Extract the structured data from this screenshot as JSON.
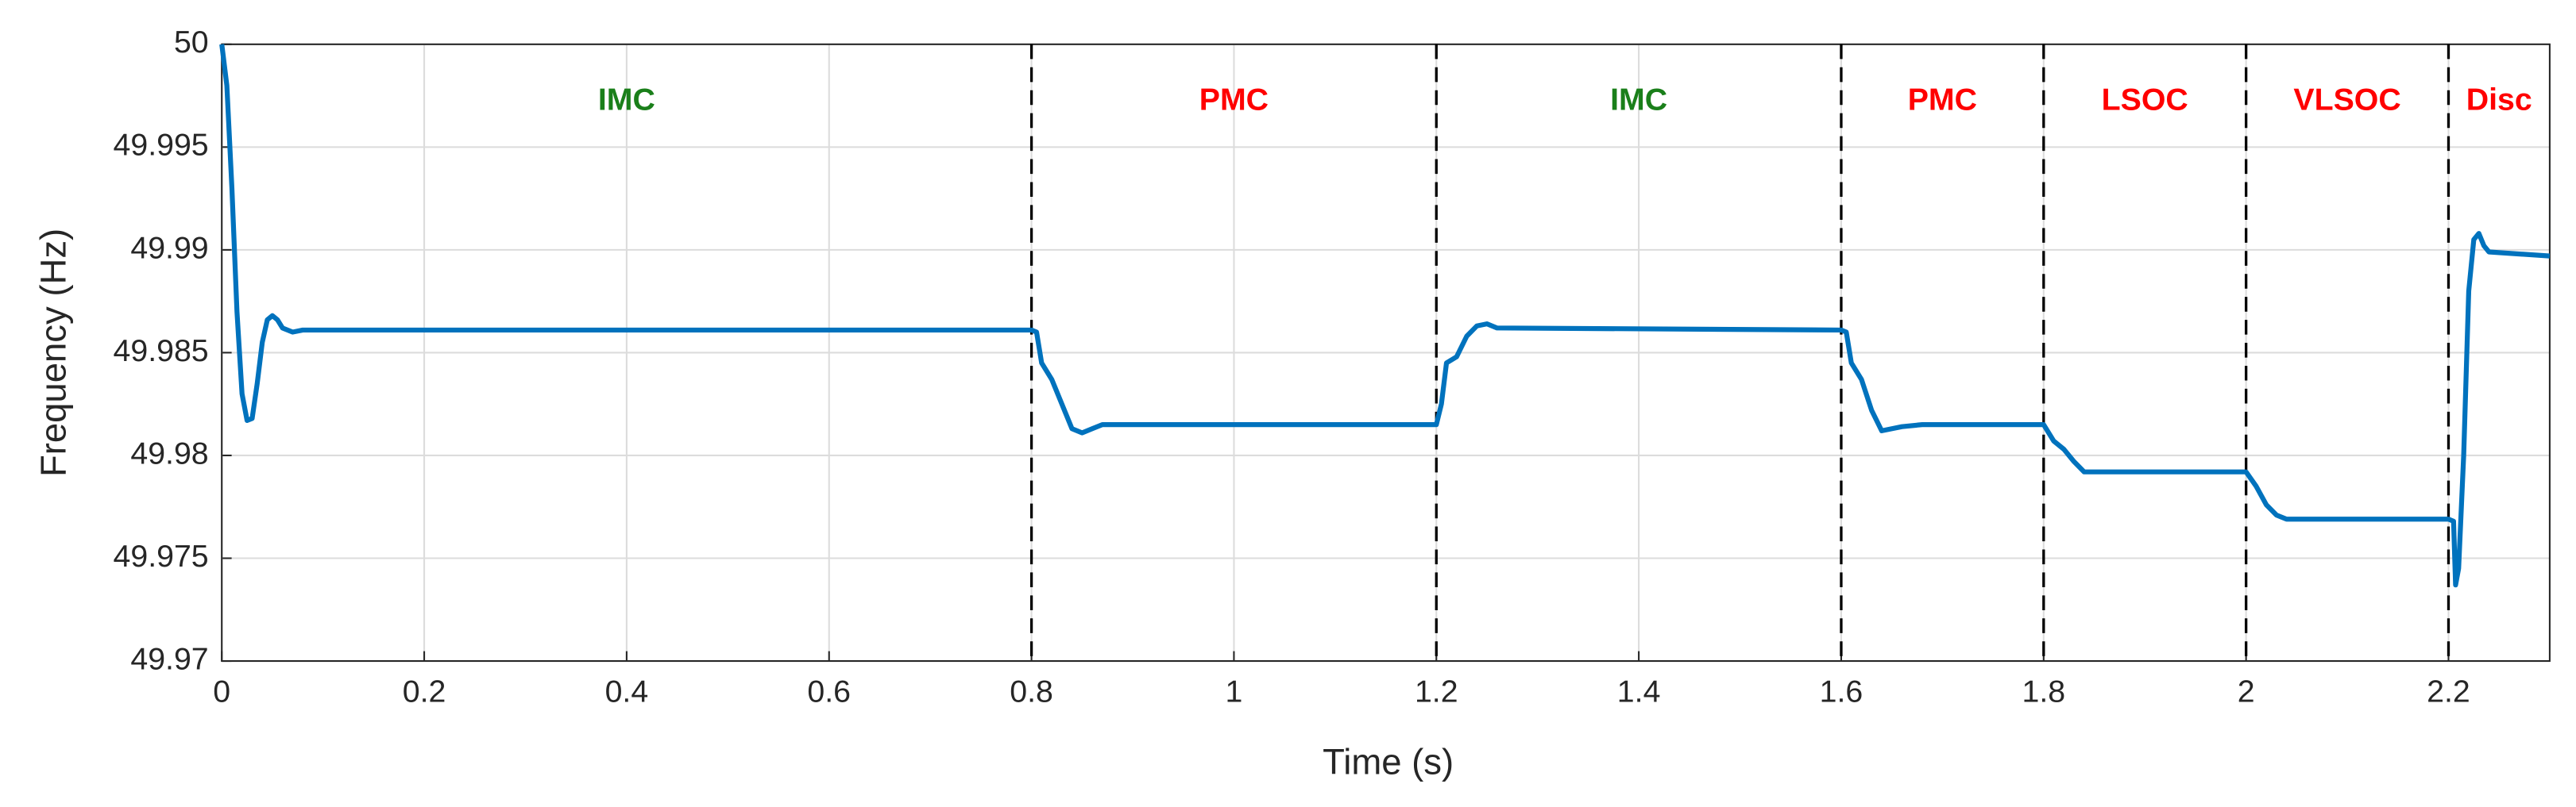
{
  "chart_data": {
    "type": "line",
    "xlabel": "Time (s)",
    "ylabel": "Frequency (Hz)",
    "xlim": [
      0,
      2.3
    ],
    "ylim": [
      49.97,
      50
    ],
    "xticks": [
      0,
      0.2,
      0.4,
      0.6,
      0.8,
      1,
      1.2,
      1.4,
      1.6,
      1.8,
      2,
      2.2
    ],
    "yticks": [
      49.97,
      49.975,
      49.98,
      49.985,
      49.99,
      49.995,
      50
    ],
    "grid": true,
    "mode_switches": [
      0.8,
      1.2,
      1.6,
      1.8,
      2,
      2.2
    ],
    "annotations": [
      {
        "text": "IMC",
        "color": "#1a7f1a"
      },
      {
        "text": "PMC",
        "color": "#ff0000"
      },
      {
        "text": "IMC",
        "color": "#1a7f1a"
      },
      {
        "text": "PMC",
        "color": "#ff0000"
      },
      {
        "text": "LSOC",
        "color": "#ff0000"
      },
      {
        "text": "VLSOC",
        "color": "#ff0000"
      },
      {
        "text": "Disc",
        "color": "#ff0000"
      }
    ],
    "series": [
      {
        "color": "#0072bd",
        "x": [
          0,
          0.005,
          0.01,
          0.015,
          0.02,
          0.025,
          0.03,
          0.035,
          0.04,
          0.045,
          0.05,
          0.055,
          0.06,
          0.07,
          0.08,
          0.1,
          0.8,
          0.805,
          0.81,
          0.82,
          0.83,
          0.84,
          0.85,
          0.86,
          0.87,
          1.2,
          1.205,
          1.21,
          1.22,
          1.23,
          1.24,
          1.25,
          1.26,
          1.6,
          1.605,
          1.61,
          1.62,
          1.63,
          1.64,
          1.66,
          1.68,
          1.8,
          1.81,
          1.82,
          1.83,
          1.84,
          1.86,
          2,
          2.01,
          2.02,
          2.03,
          2.04,
          2.2,
          2.205,
          2.207,
          2.21,
          2.215,
          2.22,
          2.225,
          2.23,
          2.235,
          2.24,
          2.3
        ],
        "values": [
          50,
          49.998,
          49.993,
          49.987,
          49.983,
          49.9817,
          49.9818,
          49.9835,
          49.9855,
          49.9866,
          49.9868,
          49.9866,
          49.9862,
          49.986,
          49.9861,
          49.9861,
          49.9861,
          49.986,
          49.9845,
          49.9837,
          49.9825,
          49.9813,
          49.9811,
          49.9813,
          49.9815,
          49.9815,
          49.9825,
          49.9845,
          49.9848,
          49.9858,
          49.9863,
          49.9864,
          49.9862,
          49.9861,
          49.986,
          49.9845,
          49.9837,
          49.9822,
          49.9812,
          49.9814,
          49.9815,
          49.9815,
          49.9807,
          49.9803,
          49.9797,
          49.9792,
          49.9792,
          49.9792,
          49.9785,
          49.9776,
          49.9771,
          49.9769,
          49.9769,
          49.9768,
          49.9737,
          49.9745,
          49.98,
          49.988,
          49.9905,
          49.9908,
          49.9902,
          49.9899,
          49.9897
        ]
      }
    ]
  }
}
